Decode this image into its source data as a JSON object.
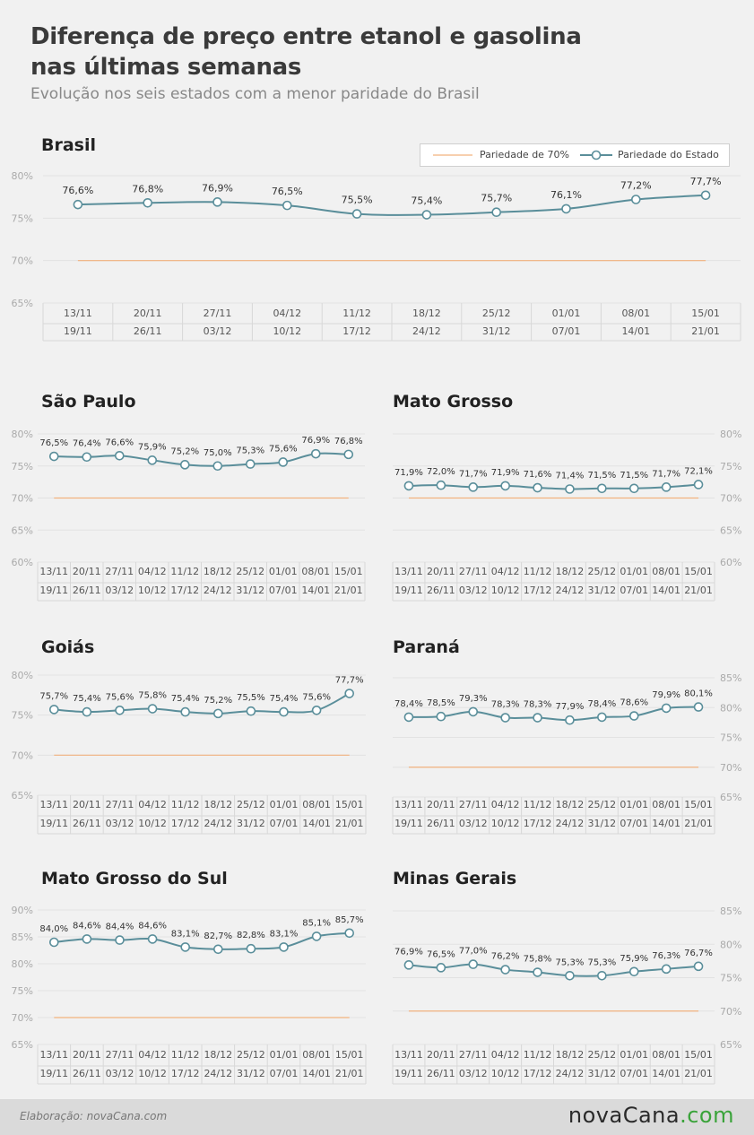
{
  "header": {
    "title": "Diferença de preço entre etanol e gasolina nas últimas semanas",
    "subtitle": "Evolução nos seis estados com a menor paridade do Brasil"
  },
  "legend": {
    "reference_label": "Pariedade de 70%",
    "state_label": "Pariedade do Estado"
  },
  "colors": {
    "series": "#5a8e9a",
    "reference": "#f2b27e",
    "grid": "#e2e2e2",
    "axis_text": "#aaaaaa",
    "marker_fill": "#ffffff"
  },
  "footer": {
    "credit": "Elaboração: novaCana.com",
    "logo_main": "nova",
    "logo_brand": "Cana",
    "logo_accent": ".com"
  },
  "chart_data": [
    {
      "title": "Brasil",
      "type": "line",
      "categories_start": [
        "13/11",
        "20/11",
        "27/11",
        "04/12",
        "11/12",
        "18/12",
        "25/12",
        "01/01",
        "08/01",
        "15/01"
      ],
      "categories_end": [
        "19/11",
        "26/11",
        "03/12",
        "10/12",
        "17/12",
        "24/12",
        "31/12",
        "07/01",
        "14/01",
        "21/01"
      ],
      "series": [
        {
          "values": [
            76.6,
            76.8,
            76.9,
            76.5,
            75.5,
            75.4,
            75.7,
            76.1,
            77.2,
            77.7
          ],
          "labels": [
            "76,6%",
            "76,8%",
            "76,9%",
            "76,5%",
            "75,5%",
            "75,4%",
            "75,7%",
            "76,1%",
            "77,2%",
            "77,7%"
          ]
        }
      ],
      "reference": 70,
      "ylim": [
        65,
        80
      ],
      "yticks": [
        "65%",
        "70%",
        "75%",
        "80%"
      ],
      "yaxis_side": "left",
      "grid": true
    },
    {
      "title": "São Paulo",
      "type": "line",
      "categories_start": [
        "13/11",
        "20/11",
        "27/11",
        "04/12",
        "11/12",
        "18/12",
        "25/12",
        "01/01",
        "08/01",
        "15/01"
      ],
      "categories_end": [
        "19/11",
        "26/11",
        "03/12",
        "10/12",
        "17/12",
        "24/12",
        "31/12",
        "07/01",
        "14/01",
        "21/01"
      ],
      "series": [
        {
          "values": [
            76.5,
            76.4,
            76.6,
            75.9,
            75.2,
            75.0,
            75.3,
            75.6,
            76.9,
            76.8
          ],
          "labels": [
            "76,5%",
            "76,4%",
            "76,6%",
            "75,9%",
            "75,2%",
            "75,0%",
            "75,3%",
            "75,6%",
            "76,9%",
            "76,8%"
          ]
        }
      ],
      "reference": 70,
      "ylim": [
        60,
        80
      ],
      "yticks": [
        "60%",
        "65%",
        "70%",
        "75%",
        "80%"
      ],
      "yaxis_side": "left",
      "grid": true
    },
    {
      "title": "Mato Grosso",
      "type": "line",
      "categories_start": [
        "13/11",
        "20/11",
        "27/11",
        "04/12",
        "11/12",
        "18/12",
        "25/12",
        "01/01",
        "08/01",
        "15/01"
      ],
      "categories_end": [
        "19/11",
        "26/11",
        "03/12",
        "10/12",
        "17/12",
        "24/12",
        "31/12",
        "07/01",
        "14/01",
        "21/01"
      ],
      "series": [
        {
          "values": [
            71.9,
            72.0,
            71.7,
            71.9,
            71.6,
            71.4,
            71.5,
            71.5,
            71.7,
            72.1
          ],
          "labels": [
            "71,9%",
            "72,0%",
            "71,7%",
            "71,9%",
            "71,6%",
            "71,4%",
            "71,5%",
            "71,5%",
            "71,7%",
            "72,1%"
          ]
        }
      ],
      "reference": 70,
      "ylim": [
        60,
        80
      ],
      "yticks": [
        "60%",
        "65%",
        "70%",
        "75%",
        "80%"
      ],
      "yaxis_side": "right",
      "grid": true
    },
    {
      "title": "Goiás",
      "type": "line",
      "categories_start": [
        "13/11",
        "20/11",
        "27/11",
        "04/12",
        "11/12",
        "18/12",
        "25/12",
        "01/01",
        "08/01",
        "15/01"
      ],
      "categories_end": [
        "19/11",
        "26/11",
        "03/12",
        "10/12",
        "17/12",
        "24/12",
        "31/12",
        "07/01",
        "14/01",
        "21/01"
      ],
      "series": [
        {
          "values": [
            75.7,
            75.4,
            75.6,
            75.8,
            75.4,
            75.2,
            75.5,
            75.4,
            75.6,
            77.7
          ],
          "labels": [
            "75,7%",
            "75,4%",
            "75,6%",
            "75,8%",
            "75,4%",
            "75,2%",
            "75,5%",
            "75,4%",
            "75,6%",
            "77,7%"
          ]
        }
      ],
      "reference": 70,
      "ylim": [
        65,
        80
      ],
      "yticks": [
        "65%",
        "70%",
        "75%",
        "80%"
      ],
      "yaxis_side": "left",
      "grid": true
    },
    {
      "title": "Paraná",
      "type": "line",
      "categories_start": [
        "13/11",
        "20/11",
        "27/11",
        "04/12",
        "11/12",
        "18/12",
        "25/12",
        "01/01",
        "08/01",
        "15/01"
      ],
      "categories_end": [
        "19/11",
        "26/11",
        "03/12",
        "10/12",
        "17/12",
        "24/12",
        "31/12",
        "07/01",
        "14/01",
        "21/01"
      ],
      "series": [
        {
          "values": [
            78.4,
            78.5,
            79.3,
            78.3,
            78.3,
            77.9,
            78.4,
            78.6,
            79.9,
            80.1
          ],
          "labels": [
            "78,4%",
            "78,5%",
            "79,3%",
            "78,3%",
            "78,3%",
            "77,9%",
            "78,4%",
            "78,6%",
            "79,9%",
            "80,1%"
          ]
        }
      ],
      "reference": 70,
      "ylim": [
        65,
        85
      ],
      "yticks": [
        "65%",
        "70%",
        "75%",
        "80%",
        "85%"
      ],
      "yaxis_side": "right",
      "grid": true
    },
    {
      "title": "Mato Grosso do Sul",
      "type": "line",
      "categories_start": [
        "13/11",
        "20/11",
        "27/11",
        "04/12",
        "11/12",
        "18/12",
        "25/12",
        "01/01",
        "08/01",
        "15/01"
      ],
      "categories_end": [
        "19/11",
        "26/11",
        "03/12",
        "10/12",
        "17/12",
        "24/12",
        "31/12",
        "07/01",
        "14/01",
        "21/01"
      ],
      "series": [
        {
          "values": [
            84.0,
            84.6,
            84.4,
            84.6,
            83.1,
            82.7,
            82.8,
            83.1,
            85.1,
            85.7
          ],
          "labels": [
            "84,0%",
            "84,6%",
            "84,4%",
            "84,6%",
            "83,1%",
            "82,7%",
            "82,8%",
            "83,1%",
            "85,1%",
            "85,7%"
          ]
        }
      ],
      "reference": 70,
      "ylim": [
        65,
        90
      ],
      "yticks": [
        "65%",
        "70%",
        "75%",
        "80%",
        "85%",
        "90%"
      ],
      "yaxis_side": "left",
      "grid": true
    },
    {
      "title": "Minas Gerais",
      "type": "line",
      "categories_start": [
        "13/11",
        "20/11",
        "27/11",
        "04/12",
        "11/12",
        "18/12",
        "25/12",
        "01/01",
        "08/01",
        "15/01"
      ],
      "categories_end": [
        "19/11",
        "26/11",
        "03/12",
        "10/12",
        "17/12",
        "24/12",
        "31/12",
        "07/01",
        "14/01",
        "21/01"
      ],
      "series": [
        {
          "values": [
            76.9,
            76.5,
            77.0,
            76.2,
            75.8,
            75.3,
            75.3,
            75.9,
            76.3,
            76.7
          ],
          "labels": [
            "76,9%",
            "76,5%",
            "77,0%",
            "76,2%",
            "75,8%",
            "75,3%",
            "75,3%",
            "75,9%",
            "76,3%",
            "76,7%"
          ]
        }
      ],
      "reference": 70,
      "ylim": [
        65,
        85
      ],
      "yticks": [
        "65%",
        "70%",
        "75%",
        "80%",
        "85%"
      ],
      "yaxis_side": "right",
      "grid": true
    }
  ]
}
